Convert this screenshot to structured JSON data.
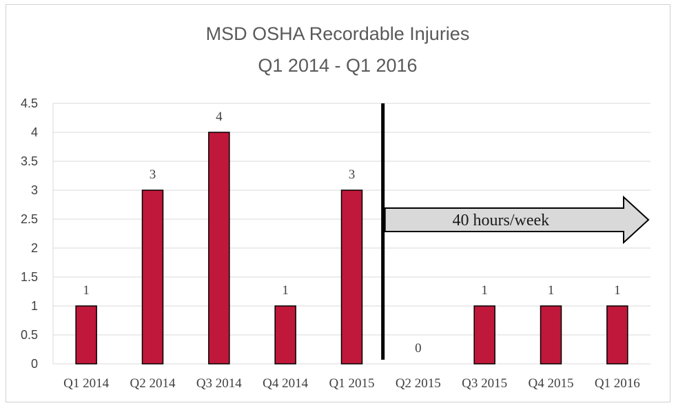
{
  "chart_data": {
    "type": "bar",
    "title": "MSD OSHA Recordable Injuries",
    "subtitle": "Q1 2014 - Q1 2016",
    "categories": [
      "Q1 2014",
      "Q2 2014",
      "Q3 2014",
      "Q4 2014",
      "Q1 2015",
      "Q2 2015",
      "Q3 2015",
      "Q4 2015",
      "Q1 2016"
    ],
    "values": [
      1,
      3,
      4,
      1,
      3,
      0,
      1,
      1,
      1
    ],
    "ylim": [
      0,
      4.5
    ],
    "yticks": [
      "0",
      "0.5",
      "1",
      "1.5",
      "2",
      "2.5",
      "3",
      "3.5",
      "4",
      "4.5"
    ],
    "xlabel": "",
    "ylabel": "",
    "grid": true,
    "bar_color": "#c0183a",
    "annotation": {
      "text": "40 hours/week",
      "divider_after_index": 4
    }
  }
}
